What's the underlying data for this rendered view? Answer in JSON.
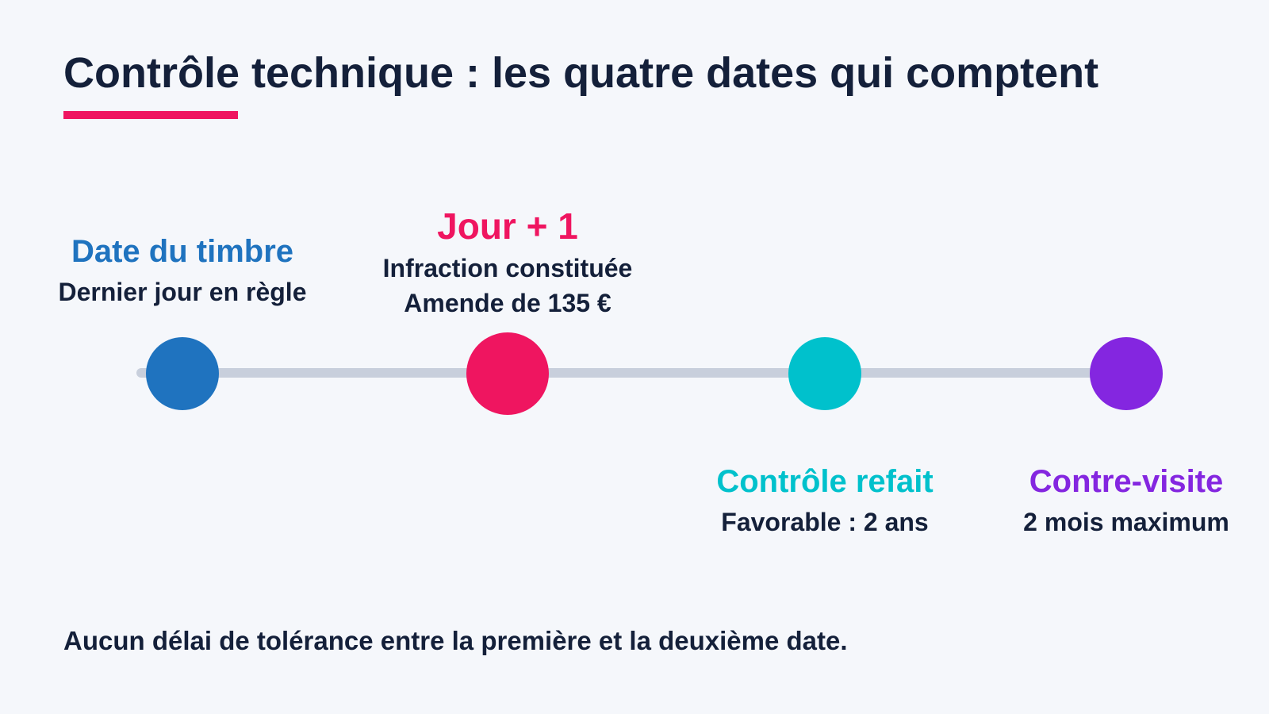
{
  "title": "Contrôle technique : les quatre dates qui comptent",
  "colors": {
    "accent": "#ef1560",
    "blue": "#1f73bf",
    "pink": "#ef1560",
    "cyan": "#00c1cc",
    "purple": "#8426e0",
    "track": "#c8cfdc",
    "text": "#14203a"
  },
  "milestones": [
    {
      "title": "Date du timbre",
      "lines": [
        "Dernier jour en règle"
      ],
      "color": "#1f73bf"
    },
    {
      "title": "Jour + 1",
      "lines": [
        "Infraction constituée",
        "Amende de 135 €"
      ],
      "color": "#ef1560"
    },
    {
      "title": "Contrôle refait",
      "lines": [
        "Favorable : 2 ans"
      ],
      "color": "#00c1cc"
    },
    {
      "title": "Contre-visite",
      "lines": [
        "2 mois maximum"
      ],
      "color": "#8426e0"
    }
  ],
  "footer": "Aucun délai de tolérance entre la première et la deuxième date."
}
